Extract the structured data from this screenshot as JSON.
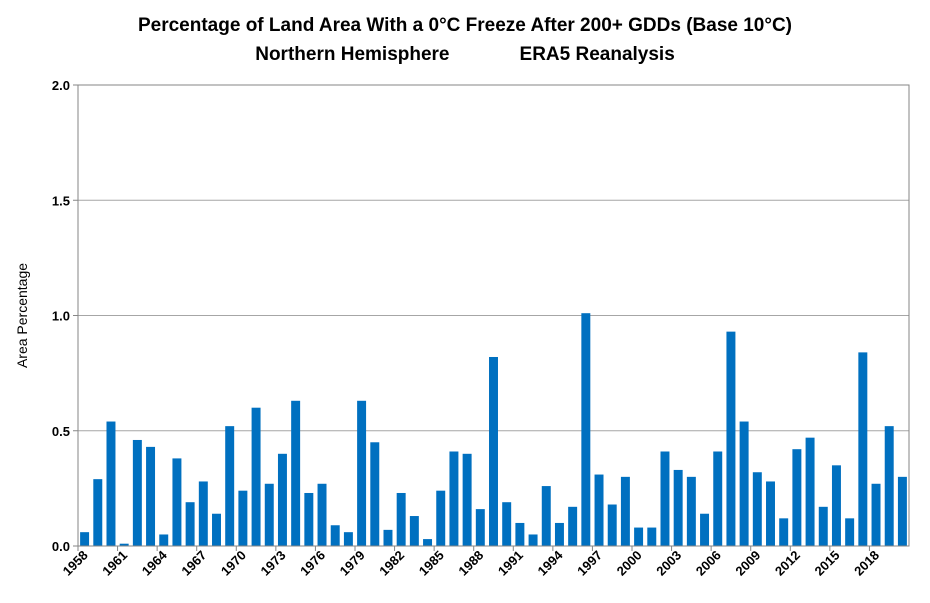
{
  "chart_data": {
    "type": "bar",
    "title": "Percentage of Land Area With a 0°C Freeze After 200+ GDDs (Base 10°C)",
    "subtitle_left": "Northern Hemisphere",
    "subtitle_right": "ERA5 Reanalysis",
    "xlabel": "",
    "ylabel": "Area Percentage",
    "ylim": [
      0,
      2.0
    ],
    "yticks": [
      "0.0",
      "0.5",
      "1.0",
      "1.5",
      "2.0"
    ],
    "grid": true,
    "bar_color": "#0070C0",
    "categories": [
      1958,
      1959,
      1960,
      1961,
      1962,
      1963,
      1964,
      1965,
      1966,
      1967,
      1968,
      1969,
      1970,
      1971,
      1972,
      1973,
      1974,
      1975,
      1976,
      1977,
      1978,
      1979,
      1980,
      1981,
      1982,
      1983,
      1984,
      1985,
      1986,
      1987,
      1988,
      1989,
      1990,
      1991,
      1992,
      1993,
      1994,
      1995,
      1996,
      1997,
      1998,
      1999,
      2000,
      2001,
      2002,
      2003,
      2004,
      2005,
      2006,
      2007,
      2008,
      2009,
      2010,
      2011,
      2012,
      2013,
      2014,
      2015,
      2016,
      2017,
      2018,
      2019,
      2020
    ],
    "xtick_labels": [
      "1958",
      "1961",
      "1964",
      "1967",
      "1970",
      "1973",
      "1976",
      "1979",
      "1982",
      "1985",
      "1988",
      "1991",
      "1994",
      "1997",
      "2000",
      "2003",
      "2006",
      "2009",
      "2012",
      "2015",
      "2018"
    ],
    "values": [
      0.06,
      0.29,
      0.54,
      0.01,
      0.46,
      0.43,
      0.05,
      0.38,
      0.19,
      0.28,
      0.14,
      0.52,
      0.24,
      0.6,
      0.27,
      0.4,
      0.63,
      0.23,
      0.27,
      0.09,
      0.06,
      0.63,
      0.45,
      0.07,
      0.23,
      0.13,
      0.03,
      0.24,
      0.41,
      0.4,
      0.16,
      0.82,
      0.19,
      0.1,
      0.05,
      0.26,
      0.1,
      0.17,
      1.01,
      0.31,
      0.18,
      0.3,
      0.08,
      0.08,
      0.41,
      0.33,
      0.3,
      0.14,
      0.41,
      0.93,
      0.54,
      0.32,
      0.28,
      0.12,
      0.42,
      0.47,
      0.17,
      0.35,
      0.12,
      0.84,
      0.27,
      0.52,
      0.3
    ]
  }
}
